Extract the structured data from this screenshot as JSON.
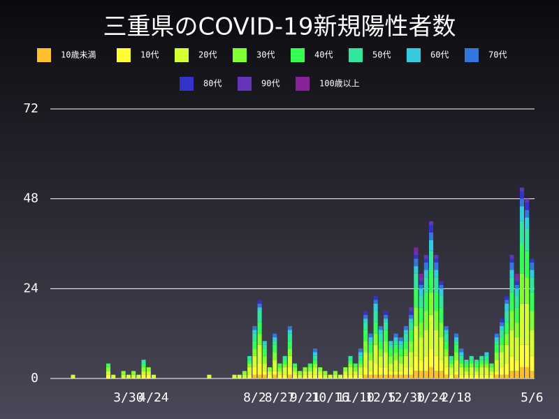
{
  "chart_data": {
    "type": "stacked-bar",
    "title": "三重県のCOVID-19新規陽性者数",
    "categories": [
      null,
      null,
      null,
      null,
      null,
      null,
      null,
      null,
      null,
      null,
      null,
      null,
      null,
      null,
      null,
      "3/30",
      null,
      null,
      null,
      null,
      "4/24",
      null,
      null,
      null,
      null,
      null,
      null,
      null,
      null,
      null,
      null,
      null,
      null,
      null,
      null,
      null,
      null,
      null,
      null,
      null,
      "8/2",
      null,
      null,
      null,
      null,
      "8/27",
      null,
      null,
      null,
      null,
      "9/21",
      null,
      null,
      null,
      null,
      "10/16",
      null,
      null,
      null,
      null,
      "11/10",
      null,
      null,
      null,
      null,
      "12/5",
      null,
      null,
      null,
      null,
      "12/30",
      null,
      null,
      null,
      null,
      "1/24",
      null,
      null,
      null,
      null,
      "2/18",
      null,
      null,
      null,
      null,
      null,
      null,
      null,
      null,
      null,
      null,
      null,
      null,
      null,
      null,
      "5/6"
    ],
    "ylim": [
      0,
      72
    ],
    "yticks": [
      0,
      24,
      48,
      72
    ],
    "grid": true,
    "series": [
      {
        "name": "10歳未満",
        "color": "#ffc12b",
        "values": [
          0,
          0,
          0,
          0,
          0,
          0,
          0,
          0,
          0,
          0,
          0,
          0,
          0,
          0,
          0,
          0,
          0,
          0,
          0,
          0,
          0,
          0,
          0,
          0,
          0,
          0,
          0,
          0,
          0,
          0,
          0,
          0,
          0,
          0,
          0,
          0,
          0,
          0,
          0,
          0,
          1,
          1,
          1,
          0,
          1,
          0,
          0,
          1,
          0,
          0,
          0,
          0,
          0,
          0,
          0,
          0,
          0,
          0,
          0,
          0,
          0,
          0,
          1,
          1,
          1,
          1,
          1,
          1,
          1,
          1,
          1,
          1,
          2,
          2,
          2,
          3,
          2,
          2,
          1,
          0,
          1,
          0,
          0,
          0,
          0,
          0,
          0,
          0,
          1,
          1,
          1,
          2,
          2,
          3,
          3,
          2
        ]
      },
      {
        "name": "10代",
        "color": "#ffff33",
        "values": [
          0,
          0,
          0,
          0,
          0,
          0,
          0,
          0,
          0,
          0,
          0,
          1,
          0,
          0,
          0,
          0,
          0,
          0,
          1,
          1,
          0,
          0,
          0,
          0,
          0,
          0,
          0,
          0,
          0,
          0,
          0,
          0,
          0,
          0,
          0,
          0,
          0,
          0,
          0,
          1,
          2,
          3,
          1,
          1,
          1,
          1,
          1,
          2,
          1,
          0,
          1,
          1,
          1,
          1,
          0,
          0,
          0,
          0,
          1,
          1,
          1,
          1,
          2,
          1,
          3,
          2,
          2,
          1,
          1,
          1,
          2,
          2,
          4,
          3,
          4,
          5,
          4,
          3,
          2,
          1,
          1,
          1,
          1,
          1,
          1,
          1,
          1,
          1,
          1,
          2,
          3,
          4,
          3,
          6,
          6,
          4
        ]
      },
      {
        "name": "20代",
        "color": "#d4ff33",
        "values": [
          0,
          0,
          0,
          0,
          1,
          0,
          0,
          0,
          0,
          0,
          0,
          1,
          1,
          0,
          1,
          1,
          1,
          1,
          1,
          1,
          1,
          0,
          0,
          0,
          0,
          0,
          0,
          0,
          0,
          0,
          0,
          1,
          0,
          0,
          0,
          0,
          1,
          1,
          1,
          2,
          3,
          5,
          2,
          1,
          3,
          1,
          2,
          3,
          1,
          1,
          1,
          1,
          2,
          1,
          1,
          1,
          1,
          1,
          1,
          2,
          1,
          2,
          4,
          3,
          5,
          3,
          4,
          2,
          3,
          2,
          3,
          4,
          8,
          6,
          7,
          9,
          7,
          6,
          3,
          2,
          3,
          2,
          1,
          2,
          1,
          2,
          2,
          1,
          3,
          4,
          5,
          7,
          6,
          11,
          11,
          7
        ]
      },
      {
        "name": "30代",
        "color": "#80ff33",
        "values": [
          0,
          0,
          0,
          0,
          0,
          0,
          0,
          0,
          0,
          0,
          0,
          1,
          0,
          0,
          1,
          0,
          1,
          0,
          1,
          1,
          0,
          0,
          0,
          0,
          0,
          0,
          0,
          0,
          0,
          0,
          0,
          0,
          0,
          0,
          0,
          0,
          0,
          0,
          1,
          1,
          2,
          3,
          2,
          1,
          2,
          1,
          1,
          2,
          1,
          1,
          1,
          1,
          1,
          1,
          1,
          0,
          1,
          0,
          1,
          1,
          1,
          1,
          3,
          2,
          3,
          2,
          3,
          2,
          2,
          2,
          2,
          3,
          5,
          4,
          5,
          6,
          5,
          4,
          2,
          1,
          2,
          1,
          1,
          1,
          1,
          1,
          1,
          1,
          2,
          2,
          3,
          5,
          4,
          8,
          7,
          5
        ]
      },
      {
        "name": "40代",
        "color": "#33ff55",
        "values": [
          0,
          0,
          0,
          0,
          0,
          0,
          0,
          0,
          0,
          0,
          0,
          1,
          0,
          0,
          0,
          0,
          0,
          0,
          1,
          0,
          0,
          0,
          0,
          0,
          0,
          0,
          0,
          0,
          0,
          0,
          0,
          0,
          0,
          0,
          0,
          0,
          0,
          0,
          0,
          1,
          2,
          3,
          2,
          0,
          2,
          1,
          1,
          2,
          1,
          0,
          0,
          1,
          1,
          0,
          0,
          0,
          0,
          0,
          0,
          1,
          1,
          1,
          3,
          2,
          3,
          2,
          3,
          2,
          2,
          2,
          2,
          3,
          5,
          4,
          5,
          6,
          5,
          4,
          2,
          1,
          2,
          1,
          1,
          1,
          1,
          1,
          1,
          1,
          2,
          2,
          3,
          5,
          4,
          8,
          7,
          5
        ]
      },
      {
        "name": "50代",
        "color": "#33e6a0",
        "values": [
          0,
          0,
          0,
          0,
          0,
          0,
          0,
          0,
          0,
          0,
          0,
          0,
          0,
          0,
          0,
          0,
          0,
          0,
          1,
          0,
          0,
          0,
          0,
          0,
          0,
          0,
          0,
          0,
          0,
          0,
          0,
          0,
          0,
          0,
          0,
          0,
          0,
          0,
          0,
          1,
          2,
          3,
          1,
          0,
          1,
          0,
          1,
          2,
          0,
          0,
          0,
          0,
          1,
          0,
          0,
          0,
          0,
          0,
          0,
          1,
          0,
          1,
          2,
          1,
          3,
          2,
          2,
          1,
          1,
          1,
          2,
          2,
          4,
          3,
          4,
          5,
          4,
          3,
          2,
          1,
          1,
          1,
          1,
          1,
          1,
          1,
          1,
          0,
          1,
          2,
          3,
          4,
          3,
          6,
          6,
          4
        ]
      },
      {
        "name": "60代",
        "color": "#33ccdd",
        "values": [
          0,
          0,
          0,
          0,
          0,
          0,
          0,
          0,
          0,
          0,
          0,
          0,
          0,
          0,
          0,
          0,
          0,
          0,
          0,
          0,
          0,
          0,
          0,
          0,
          0,
          0,
          0,
          0,
          0,
          0,
          0,
          0,
          0,
          0,
          0,
          0,
          0,
          0,
          0,
          0,
          1,
          1,
          1,
          0,
          1,
          0,
          0,
          1,
          0,
          0,
          0,
          0,
          1,
          0,
          0,
          0,
          0,
          0,
          0,
          0,
          0,
          1,
          1,
          1,
          2,
          1,
          1,
          1,
          1,
          1,
          1,
          1,
          2,
          2,
          2,
          3,
          2,
          2,
          1,
          0,
          1,
          1,
          0,
          0,
          0,
          0,
          1,
          0,
          1,
          1,
          2,
          2,
          2,
          4,
          3,
          2
        ]
      },
      {
        "name": "70代",
        "color": "#3377dd",
        "values": [
          0,
          0,
          0,
          0,
          0,
          0,
          0,
          0,
          0,
          0,
          0,
          0,
          0,
          0,
          0,
          0,
          0,
          0,
          0,
          0,
          0,
          0,
          0,
          0,
          0,
          0,
          0,
          0,
          0,
          0,
          0,
          0,
          0,
          0,
          0,
          0,
          0,
          0,
          0,
          0,
          1,
          1,
          0,
          0,
          1,
          0,
          0,
          1,
          0,
          0,
          0,
          0,
          1,
          0,
          0,
          0,
          0,
          0,
          0,
          0,
          0,
          1,
          1,
          1,
          1,
          1,
          1,
          0,
          1,
          1,
          1,
          1,
          2,
          1,
          2,
          2,
          2,
          1,
          1,
          0,
          1,
          1,
          0,
          0,
          0,
          0,
          0,
          0,
          1,
          1,
          1,
          2,
          1,
          2,
          2,
          2
        ]
      },
      {
        "name": "80代",
        "color": "#3333cc",
        "values": [
          0,
          0,
          0,
          0,
          0,
          0,
          0,
          0,
          0,
          0,
          0,
          0,
          0,
          0,
          0,
          0,
          0,
          0,
          0,
          0,
          0,
          0,
          0,
          0,
          0,
          0,
          0,
          0,
          0,
          0,
          0,
          0,
          0,
          0,
          0,
          0,
          0,
          0,
          0,
          0,
          0,
          1,
          0,
          0,
          0,
          0,
          0,
          0,
          0,
          0,
          0,
          0,
          0,
          0,
          0,
          0,
          0,
          0,
          0,
          0,
          0,
          0,
          1,
          0,
          1,
          0,
          1,
          0,
          0,
          0,
          0,
          1,
          1,
          1,
          1,
          2,
          1,
          1,
          0,
          0,
          0,
          0,
          0,
          0,
          0,
          0,
          0,
          0,
          0,
          1,
          1,
          1,
          1,
          2,
          2,
          1
        ]
      },
      {
        "name": "90代",
        "color": "#6633bb",
        "values": [
          0,
          0,
          0,
          0,
          0,
          0,
          0,
          0,
          0,
          0,
          0,
          0,
          0,
          0,
          0,
          0,
          0,
          0,
          0,
          0,
          0,
          0,
          0,
          0,
          0,
          0,
          0,
          0,
          0,
          0,
          0,
          0,
          0,
          0,
          0,
          0,
          0,
          0,
          0,
          0,
          0,
          0,
          0,
          0,
          0,
          0,
          0,
          0,
          0,
          0,
          0,
          0,
          0,
          0,
          0,
          0,
          0,
          0,
          0,
          0,
          0,
          0,
          0,
          0,
          0,
          0,
          0,
          0,
          0,
          0,
          0,
          1,
          1,
          1,
          1,
          1,
          1,
          0,
          0,
          0,
          0,
          0,
          0,
          0,
          0,
          0,
          0,
          0,
          0,
          0,
          0,
          1,
          1,
          1,
          1,
          0
        ]
      },
      {
        "name": "100歳以上",
        "color": "#882299",
        "values": [
          0,
          0,
          0,
          0,
          0,
          0,
          0,
          0,
          0,
          0,
          0,
          0,
          0,
          0,
          0,
          0,
          0,
          0,
          0,
          0,
          0,
          0,
          0,
          0,
          0,
          0,
          0,
          0,
          0,
          0,
          0,
          0,
          0,
          0,
          0,
          0,
          0,
          0,
          0,
          0,
          0,
          0,
          0,
          0,
          0,
          0,
          0,
          0,
          0,
          0,
          0,
          0,
          0,
          0,
          0,
          0,
          0,
          0,
          0,
          0,
          0,
          0,
          0,
          0,
          0,
          0,
          0,
          0,
          0,
          0,
          0,
          0,
          1,
          1,
          0,
          0,
          0,
          0,
          0,
          0,
          0,
          0,
          0,
          0,
          0,
          0,
          0,
          0,
          0,
          0,
          0,
          0,
          1,
          0,
          0,
          0
        ]
      }
    ]
  }
}
